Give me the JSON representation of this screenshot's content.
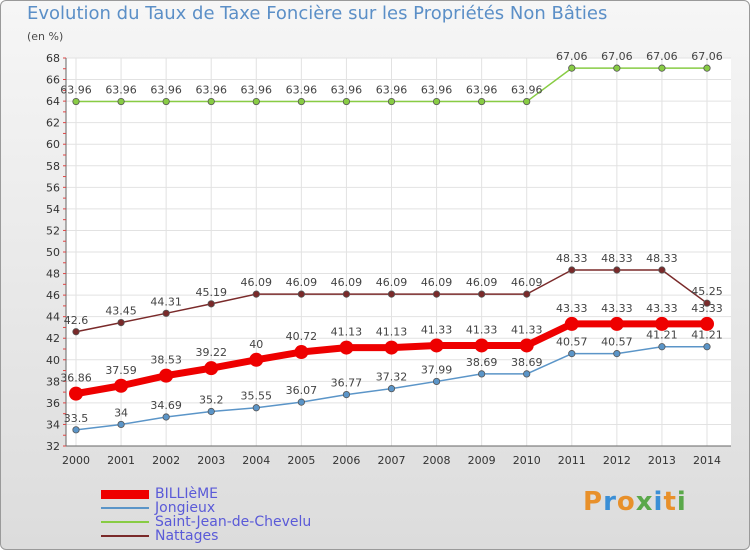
{
  "title": "Evolution du Taux de Taxe Foncière sur les Propriétés Non Bâties",
  "unit_label": "(en %)",
  "logo": {
    "text": "Proxiti",
    "colors": [
      "#e8902a",
      "#3b8fd6",
      "#e8902a",
      "#5aa84a",
      "#3b8fd6",
      "#e8902a",
      "#5aa84a"
    ]
  },
  "chart_data": {
    "type": "line",
    "title": "Evolution du Taux de Taxe Foncière sur les Propriétés Non Bâties",
    "ylabel": "(en %)",
    "xlabel": "",
    "categories": [
      "2000",
      "2001",
      "2002",
      "2003",
      "2004",
      "2005",
      "2006",
      "2007",
      "2008",
      "2009",
      "2010",
      "2011",
      "2012",
      "2013",
      "2014"
    ],
    "ylim": [
      32,
      68
    ],
    "yticks": [
      32,
      34,
      36,
      38,
      40,
      42,
      44,
      46,
      48,
      50,
      52,
      54,
      56,
      58,
      60,
      62,
      64,
      66,
      68
    ],
    "grid": true,
    "legend_position": "bottom-left",
    "series": [
      {
        "name": "BILLIèME",
        "color": "#ee0000",
        "emphasis": true,
        "values": [
          36.86,
          37.59,
          38.53,
          39.22,
          40,
          40.72,
          41.13,
          41.13,
          41.33,
          41.33,
          41.33,
          43.33,
          43.33,
          43.33,
          43.33
        ],
        "labels": [
          "36.86",
          "37.59",
          "38.53",
          "39.22",
          "40",
          "40.72",
          "41.13",
          "41.13",
          "41.33",
          "41.33",
          "41.33",
          "43.33",
          "43.33",
          "43.33",
          "43.33"
        ]
      },
      {
        "name": "Jongieux",
        "color": "#5b95c8",
        "values": [
          33.5,
          34,
          34.69,
          35.2,
          35.55,
          36.07,
          36.77,
          37.32,
          37.99,
          38.69,
          38.69,
          40.57,
          40.57,
          41.21,
          41.21
        ],
        "labels": [
          "33.5",
          "34",
          "34.69",
          "35.2",
          "35.55",
          "36.07",
          "36.77",
          "37.32",
          "37.99",
          "38.69",
          "38.69",
          "40.57",
          "40.57",
          "41.21",
          "41.21"
        ]
      },
      {
        "name": "Saint-Jean-de-Chevelu",
        "color": "#88cc44",
        "values": [
          63.96,
          63.96,
          63.96,
          63.96,
          63.96,
          63.96,
          63.96,
          63.96,
          63.96,
          63.96,
          63.96,
          67.06,
          67.06,
          67.06,
          67.06
        ],
        "labels": [
          "63.96",
          "63.96",
          "63.96",
          "63.96",
          "63.96",
          "63.96",
          "63.96",
          "63.96",
          "63.96",
          "63.96",
          "63.96",
          "67.06",
          "67.06",
          "67.06",
          "67.06"
        ]
      },
      {
        "name": "Nattages",
        "color": "#7a2a2a",
        "values": [
          42.6,
          43.45,
          44.31,
          45.19,
          46.09,
          46.09,
          46.09,
          46.09,
          46.09,
          46.09,
          46.09,
          48.33,
          48.33,
          48.33,
          45.25
        ],
        "labels": [
          "42.6",
          "43.45",
          "44.31",
          "45.19",
          "46.09",
          "46.09",
          "46.09",
          "46.09",
          "46.09",
          "46.09",
          "46.09",
          "48.33",
          "48.33",
          "48.33",
          "45.25"
        ]
      }
    ]
  }
}
